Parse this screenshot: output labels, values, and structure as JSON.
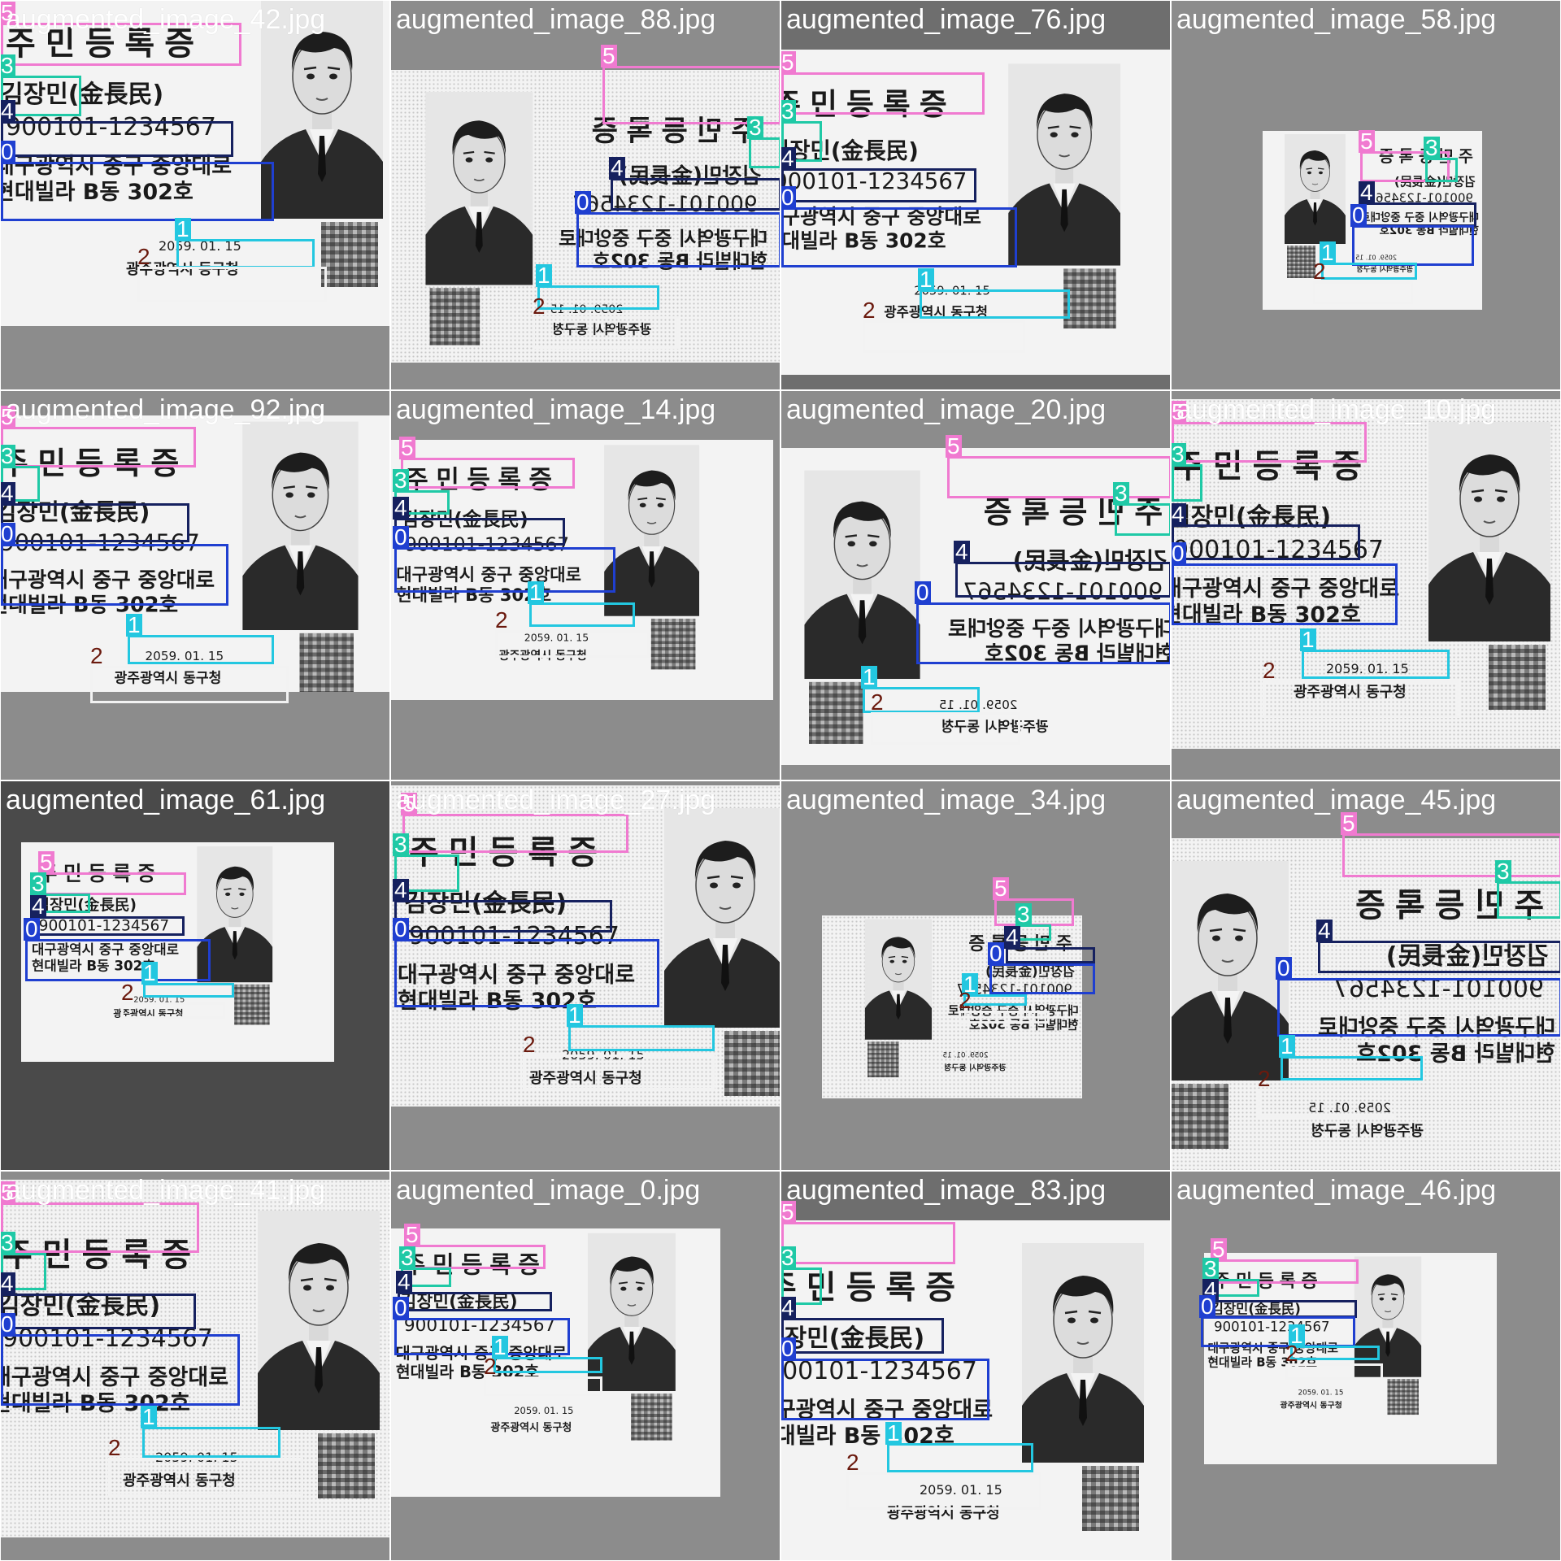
{
  "colors": {
    "class_0": "#1f3fd0",
    "class_1": "#23c7e0",
    "class_2": "#6b1a0e",
    "class_3": "#1fc9a6",
    "class_4": "#16215f",
    "class_5": "#f07ad0",
    "box_2_outline": "#f2f2f2"
  },
  "card_text": {
    "title": "주민등록증",
    "name": "김장민(金長民)",
    "id_number": "900101-1234567",
    "address_line1": "대구광역시 중구 중앙대로",
    "address_line2": "현대빌라 B동 302호",
    "issue_date": "2059. 01. 15",
    "issuer": "광주광역시 동구청"
  },
  "class_labels": [
    "0",
    "1",
    "2",
    "3",
    "4",
    "5"
  ],
  "tiles": [
    {
      "title": "augmented_image_42.jpg",
      "bg": "#8c8c8c",
      "noise": false,
      "mirror": false
    },
    {
      "title": "augmented_image_88.jpg",
      "bg": "#8c8c8c",
      "noise": true,
      "mirror": true
    },
    {
      "title": "augmented_image_76.jpg",
      "bg": "#6e6e6e",
      "noise": false,
      "mirror": false
    },
    {
      "title": "augmented_image_58.jpg",
      "bg": "#8c8c8c",
      "noise": false,
      "mirror": true
    },
    {
      "title": "augmented_image_92.jpg",
      "bg": "#8c8c8c",
      "noise": false,
      "mirror": false
    },
    {
      "title": "augmented_image_14.jpg",
      "bg": "#8c8c8c",
      "noise": false,
      "mirror": false
    },
    {
      "title": "augmented_image_20.jpg",
      "bg": "#8c8c8c",
      "noise": false,
      "mirror": true
    },
    {
      "title": "augmented_image_10.jpg",
      "bg": "#8c8c8c",
      "noise": true,
      "mirror": false
    },
    {
      "title": "augmented_image_61.jpg",
      "bg": "#4a4a4a",
      "noise": false,
      "mirror": false
    },
    {
      "title": "augmented_image_27.jpg",
      "bg": "#8c8c8c",
      "noise": true,
      "mirror": false
    },
    {
      "title": "augmented_image_34.jpg",
      "bg": "#8c8c8c",
      "noise": true,
      "mirror": true
    },
    {
      "title": "augmented_image_45.jpg",
      "bg": "#8c8c8c",
      "noise": true,
      "mirror": true
    },
    {
      "title": "augmented_image_41.jpg",
      "bg": "#8c8c8c",
      "noise": true,
      "mirror": false
    },
    {
      "title": "augmented_image_0.jpg",
      "bg": "#8c8c8c",
      "noise": false,
      "mirror": false
    },
    {
      "title": "augmented_image_83.jpg",
      "bg": "#6e6e6e",
      "noise": false,
      "mirror": false
    },
    {
      "title": "augmented_image_46.jpg",
      "bg": "#8c8c8c",
      "noise": false,
      "mirror": false
    }
  ]
}
